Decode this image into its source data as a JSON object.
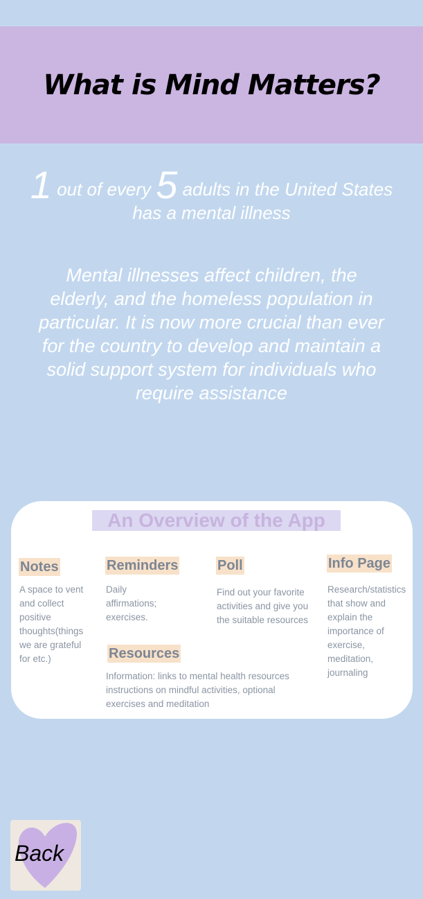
{
  "header": {
    "title": "What is Mind Matters?"
  },
  "stat": {
    "num1": "1",
    "text1": "out of every",
    "num2": "5",
    "text2": "adults in the United States has a mental illness"
  },
  "paragraph": "Mental illnesses affect children, the elderly, and the homeless population in particular. It is now more crucial than ever for the country to develop and maintain a solid support system for individuals who require assistance",
  "overview": {
    "title": "An Overview of the App",
    "features": [
      {
        "title": "Notes",
        "desc": "A space to vent and collect positive thoughts(things we are grateful for etc.)"
      },
      {
        "title": "Reminders",
        "desc": "Daily affirmations; exercises."
      },
      {
        "title": "Poll",
        "desc": "Find out your favorite activities and give you the suitable resources"
      },
      {
        "title": "Info Page",
        "desc": "Research/statistics that show and explain the importance of exercise, meditation, journaling"
      },
      {
        "title": "Resources",
        "desc": "Information: links to mental health resources instructions on mindful activities, optional exercises and meditation"
      }
    ]
  },
  "back": {
    "label": "Back"
  },
  "colors": {
    "background": "#c2d7ee",
    "header": "#cbb5e1",
    "highlight": "#f8e1c9",
    "heart": "#c9b0e4"
  }
}
